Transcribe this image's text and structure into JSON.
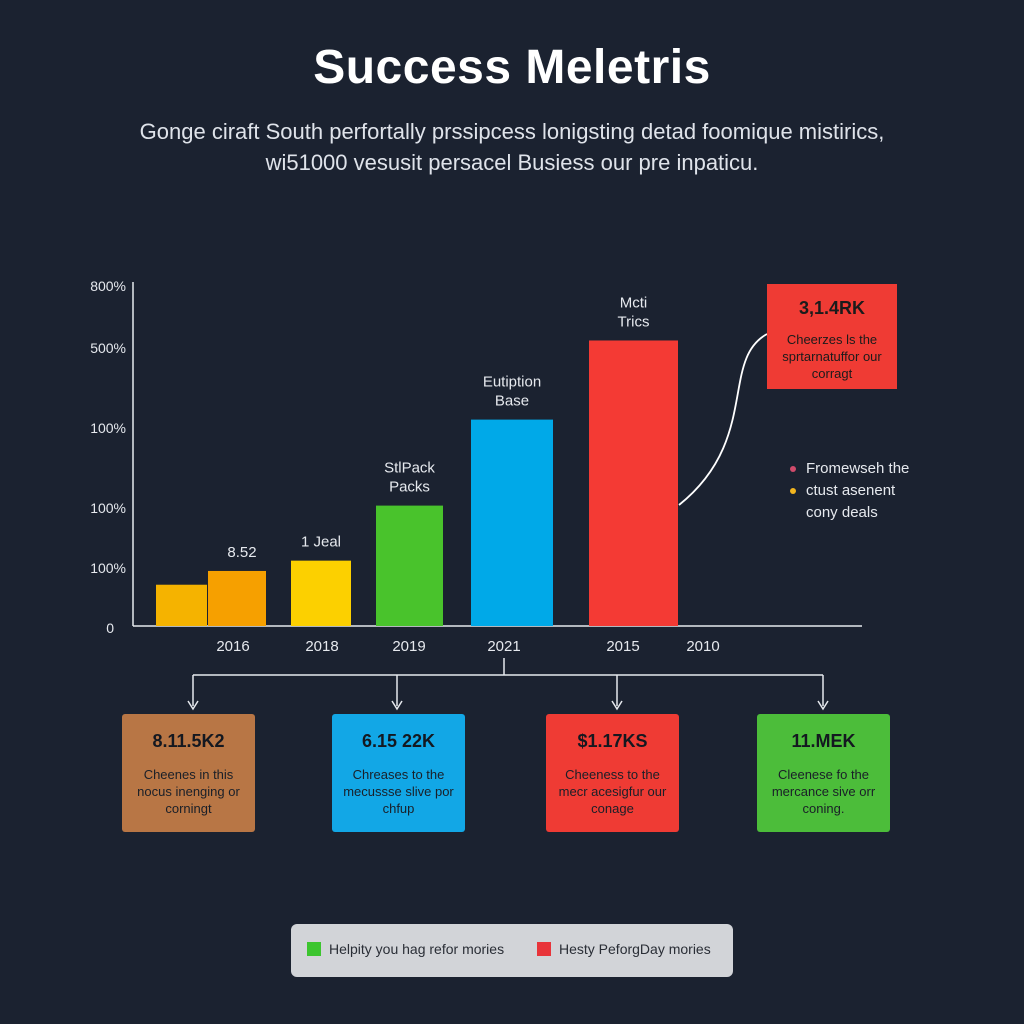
{
  "header": {
    "title": "Success Meletris",
    "subtitle_line1": "Gonge ciraft South perfortally prssipcess lonigsting detad foomique mistirics,",
    "subtitle_line2": "wi51000 vesusit persacel Busiess our pre inpaticu."
  },
  "chart_data": {
    "type": "bar",
    "y_tick_labels": [
      "0",
      "100%",
      "100%",
      "100%",
      "500%",
      "800%"
    ],
    "x_tick_labels": [
      "2016",
      "2018",
      "2019",
      "2021",
      "2015",
      "2010"
    ],
    "bars": [
      {
        "value_pct": 12,
        "color": "#f5b300",
        "label": ""
      },
      {
        "value_pct": 16,
        "color": "#f6a000",
        "label": "8.52"
      },
      {
        "value_pct": 19,
        "color": "#fcd000",
        "label": "1 Jeal"
      },
      {
        "value_pct": 35,
        "color": "#49c32c",
        "label": "StlPack Packs"
      },
      {
        "value_pct": 60,
        "color": "#00a9e8",
        "label": "Eutiption Base"
      },
      {
        "value_pct": 83,
        "color": "#f43a34",
        "label": "Mcti Trics"
      }
    ],
    "grid": false,
    "title": "",
    "xlabel": "",
    "ylabel": ""
  },
  "callout": {
    "value": "3,1.4RK",
    "desc": "Cheerzes ls the sprtarnatuffor our corragt",
    "color": "#ef3b34"
  },
  "side_note": {
    "rows": [
      {
        "text": "Fromewseh the",
        "dot": "#d04b6b"
      },
      {
        "text": "ctust asenent",
        "dot": "#f2b51f"
      },
      {
        "text": "cony deals",
        "dot": ""
      }
    ]
  },
  "boxes": [
    {
      "value": "8.11.5K2",
      "desc": "Cheenes in this nocus inenging or corningt",
      "color": "#b87645"
    },
    {
      "value": "6.15 22K",
      "desc": "Chreases to the mecussse slive por chfup",
      "color": "#12a7e6"
    },
    {
      "value": "$1.17KS",
      "desc": "Cheeness to the mecr acesigfur our conage",
      "color": "#ef3b34"
    },
    {
      "value": "11.MEK",
      "desc": "Cleenese fo the mercance sive orr coning.",
      "color": "#4cbd3a"
    }
  ],
  "legend": {
    "items": [
      {
        "label": "Helpity you hag refor mories",
        "color": "#3cc52f"
      },
      {
        "label": "Hesty PeforgDay mories",
        "color": "#e8343a"
      }
    ]
  }
}
